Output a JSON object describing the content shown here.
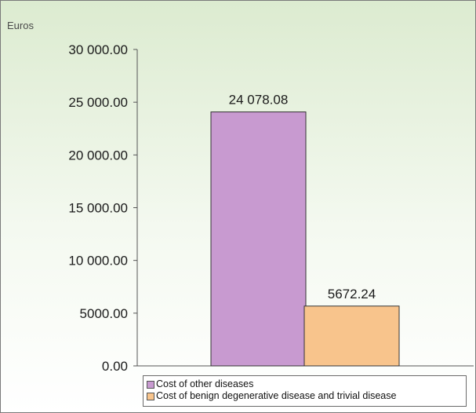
{
  "chart_data": {
    "type": "bar",
    "unit_label": "Euros",
    "ylim": [
      0,
      30000
    ],
    "y_ticks": [
      {
        "value": 0,
        "label": "0.00"
      },
      {
        "value": 5000,
        "label": "5000.00"
      },
      {
        "value": 10000,
        "label": "10 000.00"
      },
      {
        "value": 15000,
        "label": "15 000.00"
      },
      {
        "value": 20000,
        "label": "20 000.00"
      },
      {
        "value": 25000,
        "label": "25 000.00"
      },
      {
        "value": 30000,
        "label": "30 000.00"
      }
    ],
    "series": [
      {
        "name": "Cost of other diseases",
        "values": [
          24078.08
        ],
        "value_label": "24 078.08",
        "color": "#c89ad0"
      },
      {
        "name": "Cost of benign degenerative disease and trivial disease",
        "values": [
          5672.24
        ],
        "value_label": "5672.24",
        "color": "#f8c48c"
      }
    ],
    "grid": false,
    "legend_position": "bottom"
  }
}
